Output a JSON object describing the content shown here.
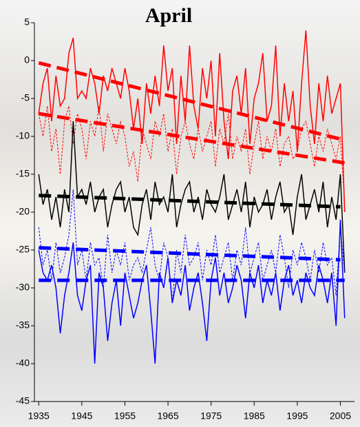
{
  "chart_data": {
    "type": "line",
    "title": "April",
    "title_color": "#0000ee",
    "xlim": [
      1934,
      2007
    ],
    "xticks": [
      1935,
      1945,
      1955,
      1965,
      1975,
      1985,
      1995,
      2005
    ],
    "ylim": [
      -45,
      5
    ],
    "yticks": [
      -45,
      -40,
      -35,
      -30,
      -25,
      -20,
      -15,
      -10,
      -5,
      0,
      5
    ],
    "x": [
      1935,
      1936,
      1937,
      1938,
      1939,
      1940,
      1941,
      1942,
      1943,
      1944,
      1945,
      1946,
      1947,
      1948,
      1949,
      1950,
      1951,
      1952,
      1953,
      1954,
      1955,
      1956,
      1957,
      1958,
      1959,
      1960,
      1961,
      1962,
      1963,
      1964,
      1965,
      1966,
      1967,
      1968,
      1969,
      1970,
      1971,
      1972,
      1973,
      1974,
      1975,
      1976,
      1977,
      1978,
      1979,
      1980,
      1981,
      1982,
      1983,
      1984,
      1985,
      1986,
      1987,
      1988,
      1989,
      1990,
      1991,
      1992,
      1993,
      1994,
      1995,
      1996,
      1997,
      1998,
      1999,
      2000,
      2001,
      2002,
      2003,
      2004,
      2005,
      2006
    ],
    "series": [
      {
        "color": "#ff0000",
        "style": "solid",
        "width": 1.5,
        "values": [
          -7,
          -3,
          -1,
          -8,
          -2,
          -6,
          -5,
          1,
          3,
          -5,
          -4,
          -5,
          -1,
          -3,
          -7,
          -2,
          -4,
          -1,
          -3,
          -5,
          -1,
          -4,
          -9,
          -5,
          -11,
          -3,
          -7,
          -2,
          -6,
          2,
          -4,
          -1,
          -11,
          -2,
          -8,
          2,
          -6,
          -9,
          -1,
          -5,
          0,
          -10,
          1,
          -8,
          -13,
          -4,
          -2,
          -7,
          -1,
          -11,
          -5,
          -3,
          1,
          -8,
          -6,
          2,
          -10,
          -3,
          -8,
          -4,
          -12,
          -3,
          4,
          -6,
          -11,
          -3,
          -8,
          -2,
          -7,
          -5,
          -3,
          -20
        ]
      },
      {
        "color": "#ff0000",
        "style": "dashed",
        "width": 1,
        "values": [
          -7,
          -10,
          -6,
          -12,
          -9,
          -15,
          -8,
          -6,
          -11,
          -7,
          -9,
          -13,
          -8,
          -10,
          -6,
          -12,
          -7,
          -9,
          -11,
          -8,
          -10,
          -14,
          -12,
          -16,
          -9,
          -11,
          -13,
          -8,
          -10,
          -7,
          -12,
          -9,
          -15,
          -10,
          -8,
          -11,
          -13,
          -9,
          -12,
          -10,
          -8,
          -14,
          -9,
          -11,
          -7,
          -13,
          -10,
          -12,
          -9,
          -15,
          -11,
          -8,
          -13,
          -10,
          -12,
          -9,
          -14,
          -11,
          -10,
          -13,
          -12,
          -9,
          -8,
          -11,
          -14,
          -10,
          -12,
          -9,
          -11,
          -13,
          -10,
          -19
        ]
      },
      {
        "color": "#000000",
        "style": "solid",
        "width": 1.5,
        "values": [
          -15,
          -19,
          -17,
          -21,
          -18,
          -22,
          -17,
          -20,
          -8,
          -18,
          -17,
          -19,
          -16,
          -20,
          -18,
          -17,
          -22,
          -19,
          -17,
          -16,
          -20,
          -18,
          -22,
          -23,
          -19,
          -17,
          -21,
          -16,
          -19,
          -18,
          -20,
          -15,
          -22,
          -19,
          -17,
          -16,
          -20,
          -18,
          -21,
          -17,
          -19,
          -20,
          -18,
          -15,
          -21,
          -19,
          -17,
          -20,
          -16,
          -22,
          -18,
          -20,
          -19,
          -17,
          -21,
          -18,
          -16,
          -20,
          -19,
          -23,
          -18,
          -15,
          -21,
          -19,
          -17,
          -20,
          -16,
          -22,
          -18,
          -21,
          -15,
          -28
        ]
      },
      {
        "color": "#0000ff",
        "style": "dashed",
        "width": 1,
        "values": [
          -22,
          -27,
          -25,
          -29,
          -24,
          -28,
          -26,
          -23,
          -17,
          -27,
          -25,
          -29,
          -24,
          -27,
          -26,
          -30,
          -23,
          -28,
          -25,
          -27,
          -24,
          -29,
          -27,
          -26,
          -28,
          -25,
          -22,
          -27,
          -29,
          -24,
          -26,
          -32,
          -25,
          -28,
          -23,
          -27,
          -26,
          -24,
          -29,
          -25,
          -27,
          -23,
          -28,
          -26,
          -24,
          -29,
          -25,
          -27,
          -22,
          -28,
          -26,
          -24,
          -29,
          -27,
          -25,
          -28,
          -23,
          -26,
          -30,
          -25,
          -27,
          -24,
          -26,
          -29,
          -25,
          -28,
          -24,
          -27,
          -26,
          -31,
          -22,
          -28
        ]
      },
      {
        "color": "#0000ff",
        "style": "solid",
        "width": 1.5,
        "values": [
          -25,
          -28,
          -29,
          -27,
          -30,
          -36,
          -31,
          -28,
          -24,
          -31,
          -33,
          -29,
          -27,
          -40,
          -28,
          -30,
          -37,
          -32,
          -29,
          -35,
          -28,
          -31,
          -34,
          -32,
          -29,
          -27,
          -33,
          -40,
          -28,
          -30,
          -26,
          -32,
          -29,
          -31,
          -27,
          -33,
          -30,
          -28,
          -32,
          -37,
          -29,
          -26,
          -31,
          -28,
          -32,
          -30,
          -27,
          -29,
          -34,
          -28,
          -30,
          -27,
          -32,
          -29,
          -31,
          -28,
          -33,
          -29,
          -27,
          -31,
          -29,
          -32,
          -28,
          -30,
          -31,
          -27,
          -29,
          -32,
          -28,
          -35,
          -21,
          -34
        ]
      },
      {
        "color": "#ff0000",
        "style": "trend",
        "width": 5,
        "x": [
          1935,
          2006
        ],
        "values": [
          -0.3,
          -10.5
        ]
      },
      {
        "color": "#ff0000",
        "style": "trend",
        "width": 5,
        "x": [
          1935,
          2006
        ],
        "values": [
          -7,
          -13.5
        ]
      },
      {
        "color": "#000000",
        "style": "trend",
        "width": 5,
        "x": [
          1935,
          2005
        ],
        "values": [
          -17.8,
          -19.3
        ]
      },
      {
        "color": "#0000ff",
        "style": "trend",
        "width": 5,
        "x": [
          1935,
          2005
        ],
        "values": [
          -24.7,
          -26.3
        ]
      },
      {
        "color": "#0000ff",
        "style": "trend",
        "width": 5,
        "x": [
          1935,
          2006
        ],
        "values": [
          -29,
          -29
        ]
      }
    ]
  }
}
